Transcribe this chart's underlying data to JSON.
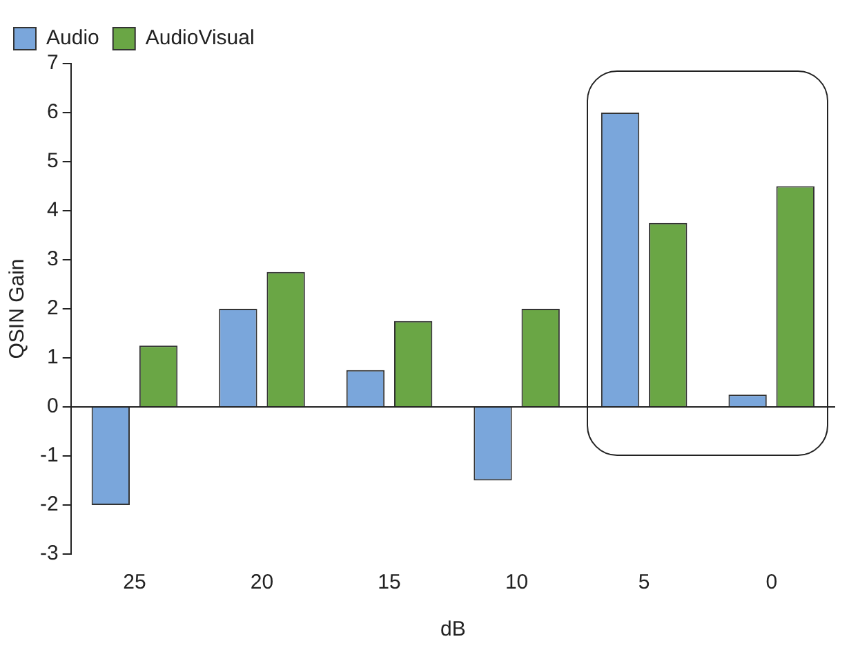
{
  "chart_data": {
    "type": "bar",
    "xlabel": "dB",
    "ylabel": "QSIN Gain",
    "categories": [
      "25",
      "20",
      "15",
      "10",
      "5",
      "0"
    ],
    "series": [
      {
        "name": "Audio",
        "color": "#7aa6db",
        "values": [
          -2,
          2,
          0.75,
          -1.5,
          6,
          0.25
        ]
      },
      {
        "name": "AudioVisual",
        "color": "#6aa645",
        "values": [
          1.25,
          2.75,
          1.75,
          2,
          3.75,
          4.5
        ]
      }
    ],
    "ylim": [
      -3,
      7
    ],
    "yticks": [
      -3,
      -2,
      -1,
      0,
      1,
      2,
      3,
      4,
      5,
      6,
      7
    ],
    "legend": "top left"
  }
}
